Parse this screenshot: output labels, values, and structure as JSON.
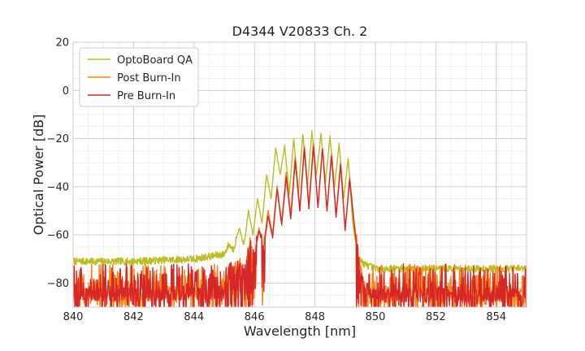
{
  "chart_data": {
    "type": "line",
    "title": "D4344 V20833 Ch. 2",
    "xlabel": "Wavelength [nm]",
    "ylabel": "Optical Power [dB]",
    "xlim": [
      840,
      855
    ],
    "ylim": [
      -90,
      20
    ],
    "xticks": [
      840,
      842,
      844,
      846,
      848,
      850,
      852,
      854
    ],
    "yticks": [
      20,
      0,
      -20,
      -40,
      -60,
      -80
    ],
    "minor_xtick_step": 0.5,
    "minor_ytick_step": 5,
    "grid": true,
    "legend_position": "top-left",
    "series": [
      {
        "name": "OptoBoard QA",
        "color": "#bcbd22",
        "x": [
          840.0,
          842.0,
          844.0,
          844.5,
          845.0,
          845.15,
          845.3,
          845.5,
          845.65,
          845.8,
          845.95,
          846.1,
          846.25,
          846.4,
          846.55,
          846.7,
          846.85,
          847.0,
          847.15,
          847.3,
          847.45,
          847.6,
          847.75,
          847.9,
          848.05,
          848.2,
          848.35,
          848.5,
          848.65,
          848.8,
          848.95,
          849.1,
          849.25,
          849.4,
          849.6,
          850.0,
          852.0,
          855.0
        ],
        "y": [
          -71,
          -71,
          -70,
          -69,
          -68,
          -64,
          -66,
          -57,
          -65,
          -50,
          -60,
          -45,
          -55,
          -35,
          -45,
          -24,
          -35,
          -23,
          -43,
          -20,
          -43,
          -18,
          -40,
          -17,
          -35,
          -18,
          -38,
          -19,
          -40,
          -22,
          -45,
          -28,
          -55,
          -68,
          -72,
          -74,
          -74,
          -74
        ]
      },
      {
        "name": "Post Burn-In",
        "color": "#ff7f0e",
        "x": [
          840.0,
          845.0,
          845.2,
          845.4,
          845.55,
          845.7,
          845.85,
          846.0,
          846.15,
          846.3,
          846.45,
          846.6,
          846.75,
          846.9,
          847.05,
          847.2,
          847.35,
          847.5,
          847.65,
          847.8,
          847.95,
          848.1,
          848.25,
          848.4,
          848.55,
          848.7,
          848.85,
          849.0,
          849.15,
          849.3,
          849.45,
          849.6,
          850.0,
          855.0
        ],
        "y": [
          -85,
          -84,
          -72,
          -73,
          -70,
          -75,
          -62,
          -68,
          -57,
          -65,
          -50,
          -60,
          -40,
          -55,
          -34,
          -52,
          -27,
          -50,
          -23,
          -48,
          -22,
          -48,
          -24,
          -50,
          -26,
          -52,
          -30,
          -58,
          -36,
          -55,
          -70,
          -82,
          -85,
          -85
        ]
      },
      {
        "name": "Pre Burn-In",
        "color": "#d62728",
        "x": [
          840.0,
          845.0,
          845.2,
          845.4,
          845.55,
          845.7,
          845.85,
          846.0,
          846.15,
          846.3,
          846.45,
          846.6,
          846.75,
          846.9,
          847.05,
          847.2,
          847.35,
          847.5,
          847.65,
          847.8,
          847.95,
          848.1,
          848.25,
          848.4,
          848.55,
          848.7,
          848.85,
          849.0,
          849.15,
          849.3,
          849.45,
          849.6,
          850.0,
          855.0
        ],
        "y": [
          -85,
          -84,
          -73,
          -74,
          -70,
          -76,
          -62,
          -69,
          -58,
          -66,
          -52,
          -61,
          -41,
          -56,
          -36,
          -53,
          -29,
          -50,
          -24,
          -49,
          -23,
          -49,
          -24,
          -50,
          -27,
          -53,
          -31,
          -58,
          -37,
          -56,
          -70,
          -82,
          -85,
          -85
        ]
      }
    ]
  }
}
